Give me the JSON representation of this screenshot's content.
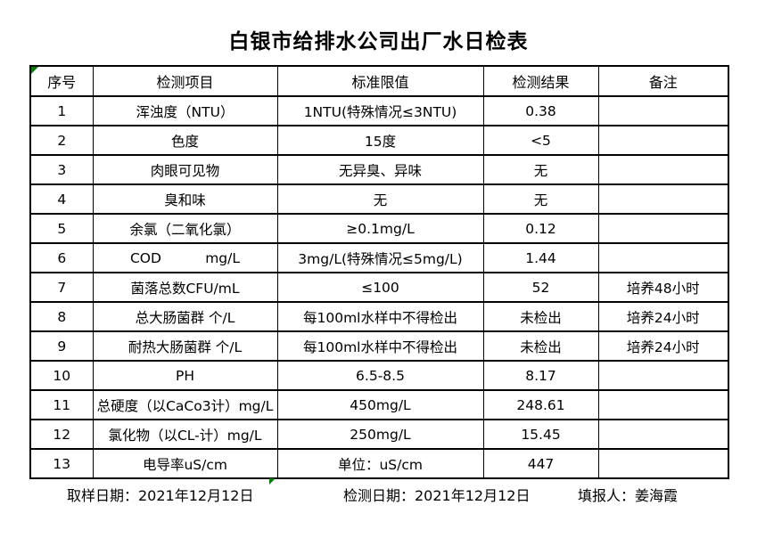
{
  "title": "白银市给排水公司出厂水日检表",
  "table": {
    "headers": [
      "序号",
      "检测项目",
      "标准限值",
      "检测结果",
      "备注"
    ],
    "rows": [
      {
        "no": "1",
        "item": "浑浊度（NTU）",
        "limit": "1NTU(特殊情况≤3NTU)",
        "result": "0.38",
        "remark": ""
      },
      {
        "no": "2",
        "item": "色度",
        "limit": "15度",
        "result": "<5",
        "remark": ""
      },
      {
        "no": "3",
        "item": "肉眼可见物",
        "limit": "无异臭、异味",
        "result": "无",
        "remark": ""
      },
      {
        "no": "4",
        "item": "臭和味",
        "limit": "无",
        "result": "无",
        "remark": ""
      },
      {
        "no": "5",
        "item": "余氯（二氧化氯）",
        "limit": "≥0.1mg/L",
        "result": "0.12",
        "remark": ""
      },
      {
        "no": "6",
        "item": "COD          mg/L",
        "limit": "3mg/L(特殊情况≤5mg/L)",
        "result": "1.44",
        "remark": ""
      },
      {
        "no": "7",
        "item": "菌落总数CFU/mL",
        "limit": "≤100",
        "result": "52",
        "remark": "培养48小时"
      },
      {
        "no": "8",
        "item": "总大肠菌群 个/L",
        "limit": "每100ml水样中不得检出",
        "result": "未检出",
        "remark": "培养24小时"
      },
      {
        "no": "9",
        "item": "耐热大肠菌群 个/L",
        "limit": "每100ml水样中不得检出",
        "result": "未检出",
        "remark": "培养24小时"
      },
      {
        "no": "10",
        "item": "PH",
        "limit": "6.5-8.5",
        "result": "8.17",
        "remark": ""
      },
      {
        "no": "11",
        "item": "总硬度（以CaCo3计）mg/L",
        "limit": "450mg/L",
        "result": "248.61",
        "remark": ""
      },
      {
        "no": "12",
        "item": "氯化物（以CL-计）mg/L",
        "limit": "250mg/L",
        "result": "15.45",
        "remark": ""
      },
      {
        "no": "13",
        "item": "电导率uS/cm",
        "limit": "单位：uS/cm",
        "result": "447",
        "remark": ""
      }
    ]
  },
  "footer": {
    "sampling_date": "取样日期：2021年12月12日",
    "test_date": "检测日期：2021年12月12日",
    "reporter": "填报人：姜海霞"
  },
  "colors": {
    "accent_green": "#008000",
    "border": "#000000",
    "background": "#ffffff"
  }
}
